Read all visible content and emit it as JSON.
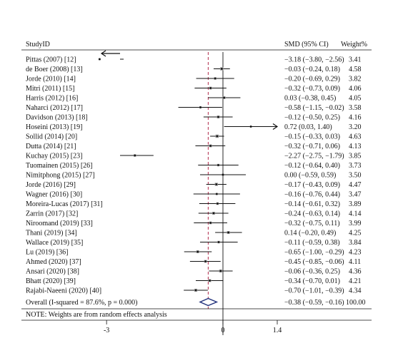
{
  "chart_data": {
    "type": "forest",
    "headers": {
      "study": "StudyID",
      "effect": "SMD (95% CI)",
      "weight": "Weight%"
    },
    "xlim": [
      -3.6,
      2.1
    ],
    "xticks": [
      -3,
      0,
      1.4
    ],
    "xtick_labels": [
      "-3",
      "0",
      "1.4"
    ],
    "null_line": 0,
    "overall_line": -0.38,
    "studies": [
      {
        "label": "Pittas (2007) [12]",
        "smd": -3.18,
        "lo": -3.8,
        "hi": -2.56,
        "ci": "−3.18 (−3.80, −2.56)",
        "weight": "3.41",
        "arrow": "left"
      },
      {
        "label": "de Boer (2008) [13]",
        "smd": -0.03,
        "lo": -0.24,
        "hi": 0.18,
        "ci": "−0.03 (−0.24, 0.18)",
        "weight": "4.58"
      },
      {
        "label": "Jorde (2010) [14]",
        "smd": -0.2,
        "lo": -0.69,
        "hi": 0.29,
        "ci": "−0.20 (−0.69, 0.29)",
        "weight": "3.82"
      },
      {
        "label": "Mitri (2011) [15]",
        "smd": -0.32,
        "lo": -0.73,
        "hi": 0.09,
        "ci": "−0.32 (−0.73, 0.09)",
        "weight": "4.06"
      },
      {
        "label": "Harris (2012) [16]",
        "smd": 0.03,
        "lo": -0.38,
        "hi": 0.45,
        "ci": "0.03 (−0.38, 0.45)",
        "weight": "4.05"
      },
      {
        "label": "Naharci (2012) [17]",
        "smd": -0.58,
        "lo": -1.15,
        "hi": -0.02,
        "ci": "−0.58 (−1.15, −0.02)",
        "weight": "3.58"
      },
      {
        "label": "Davidson (2013) [18]",
        "smd": -0.12,
        "lo": -0.5,
        "hi": 0.25,
        "ci": "−0.12 (−0.50, 0.25)",
        "weight": "4.16"
      },
      {
        "label": "Hoseini (2013) [19]",
        "smd": 0.72,
        "lo": 0.03,
        "hi": 1.4,
        "ci": "0.72 (0.03, 1.40)",
        "weight": "3.20",
        "arrow": "right"
      },
      {
        "label": "Sollid (2014) [20]",
        "smd": -0.15,
        "lo": -0.33,
        "hi": 0.03,
        "ci": "−0.15 (−0.33, 0.03)",
        "weight": "4.63"
      },
      {
        "label": "Dutta (2014) [21]",
        "smd": -0.32,
        "lo": -0.71,
        "hi": 0.06,
        "ci": "−0.32 (−0.71, 0.06)",
        "weight": "4.13"
      },
      {
        "label": "Kuchay (2015) [23]",
        "smd": -2.27,
        "lo": -2.75,
        "hi": -1.79,
        "ci": "−2.27 (−2.75, −1.79)",
        "weight": "3.85"
      },
      {
        "label": "Tuomainen (2015) [26]",
        "smd": -0.12,
        "lo": -0.64,
        "hi": 0.4,
        "ci": "−0.12 (−0.64, 0.40)",
        "weight": "3.73"
      },
      {
        "label": "Nimitphong (2015) [27]",
        "smd": 0.0,
        "lo": -0.59,
        "hi": 0.59,
        "ci": "0.00 (−0.59, 0.59)",
        "weight": "3.50"
      },
      {
        "label": "Jorde (2016) [29]",
        "smd": -0.17,
        "lo": -0.43,
        "hi": 0.09,
        "ci": "−0.17 (−0.43, 0.09)",
        "weight": "4.47"
      },
      {
        "label": "Wagner (2016) [30]",
        "smd": -0.16,
        "lo": -0.76,
        "hi": 0.44,
        "ci": "−0.16 (−0.76, 0.44)",
        "weight": "3.47"
      },
      {
        "label": "Moreira-Lucas (2017) [31]",
        "smd": -0.14,
        "lo": -0.61,
        "hi": 0.32,
        "ci": "−0.14 (−0.61, 0.32)",
        "weight": "3.89"
      },
      {
        "label": "Zarrin (2017) [32]",
        "smd": -0.24,
        "lo": -0.63,
        "hi": 0.14,
        "ci": "−0.24 (−0.63, 0.14)",
        "weight": "4.14"
      },
      {
        "label": "Niroomand (2019) [33]",
        "smd": -0.32,
        "lo": -0.75,
        "hi": 0.11,
        "ci": "−0.32 (−0.75, 0.11)",
        "weight": "3.99"
      },
      {
        "label": "Thani (2019) [34]",
        "smd": 0.14,
        "lo": -0.2,
        "hi": 0.49,
        "ci": "0.14 (−0.20, 0.49)",
        "weight": "4.25"
      },
      {
        "label": "Wallace (2019) [35]",
        "smd": -0.11,
        "lo": -0.59,
        "hi": 0.38,
        "ci": "−0.11 (−0.59, 0.38)",
        "weight": "3.84"
      },
      {
        "label": "Lu (2019) [36]",
        "smd": -0.65,
        "lo": -1.0,
        "hi": -0.29,
        "ci": "−0.65 (−1.00, −0.29)",
        "weight": "4.23"
      },
      {
        "label": "Ahmed (2020) [37]",
        "smd": -0.45,
        "lo": -0.85,
        "hi": -0.06,
        "ci": "−0.45 (−0.85, −0.06)",
        "weight": "4.11"
      },
      {
        "label": "Ansari (2020) [38]",
        "smd": -0.06,
        "lo": -0.36,
        "hi": 0.25,
        "ci": "−0.06 (−0.36, 0.25)",
        "weight": "4.36"
      },
      {
        "label": "Bhatt (2020) [39]",
        "smd": -0.34,
        "lo": -0.7,
        "hi": 0.01,
        "ci": "−0.34 (−0.70, 0.01)",
        "weight": "4.21"
      },
      {
        "label": "Rajabi-Naeeni (2020) [40]",
        "smd": -0.7,
        "lo": -1.01,
        "hi": -0.39,
        "ci": "−0.70 (−1.01, −0.39)",
        "weight": "4.34"
      }
    ],
    "overall": {
      "label": "Overall  (I-squared = 87.6%, p = 0.000)",
      "smd": -0.38,
      "lo": -0.59,
      "hi": -0.16,
      "ci": "−0.38 (−0.59, −0.16)",
      "weight": "100.00"
    },
    "note": "NOTE: Weights are from random effects analysis",
    "colors": {
      "diamond": "#1f2f7a",
      "overall_line": "#b02a4a",
      "ink": "#111111",
      "box": "#9a9a9a"
    }
  }
}
